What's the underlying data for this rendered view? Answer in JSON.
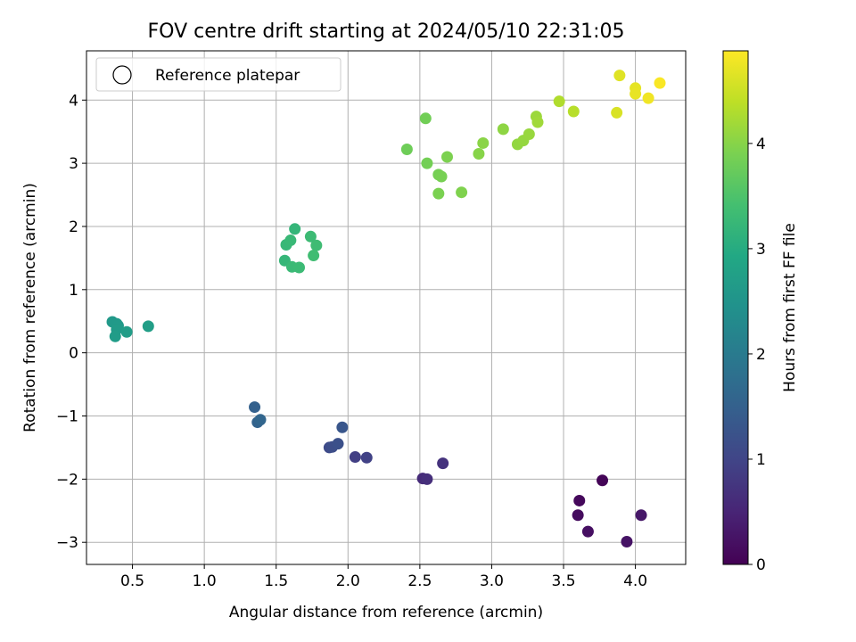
{
  "chart_data": {
    "type": "scatter",
    "title": "FOV centre drift starting at 2024/05/10 22:31:05",
    "xlabel": "Angular distance from reference (arcmin)",
    "ylabel": "Rotation from reference (arcmin)",
    "xlim": [
      0.18,
      4.35
    ],
    "ylim": [
      -3.35,
      4.78
    ],
    "xticks": [
      0.5,
      1.0,
      1.5,
      2.0,
      2.5,
      3.0,
      3.5,
      4.0
    ],
    "xtick_labels": [
      "0.5",
      "1.0",
      "1.5",
      "2.0",
      "2.5",
      "3.0",
      "3.5",
      "4.0"
    ],
    "yticks": [
      -3,
      -2,
      -1,
      0,
      1,
      2,
      3,
      4
    ],
    "ytick_labels": [
      "−3",
      "−2",
      "−1",
      "0",
      "1",
      "2",
      "3",
      "4"
    ],
    "grid": true,
    "legend": {
      "placement": "upper-left",
      "entries": [
        "Reference platepar"
      ]
    },
    "colorbar": {
      "label": "Hours from first FF file",
      "colormap": "viridis",
      "range": [
        0,
        4.88
      ],
      "ticks": [
        0,
        1,
        2,
        3,
        4
      ],
      "tick_labels": [
        "0",
        "1",
        "2",
        "3",
        "4"
      ]
    },
    "points": [
      {
        "x": 3.77,
        "y": -2.02,
        "c": 0.05
      },
      {
        "x": 3.61,
        "y": -2.34,
        "c": 0.1
      },
      {
        "x": 3.6,
        "y": -2.57,
        "c": 0.15
      },
      {
        "x": 3.67,
        "y": -2.83,
        "c": 0.2
      },
      {
        "x": 3.94,
        "y": -2.99,
        "c": 0.25
      },
      {
        "x": 4.04,
        "y": -2.57,
        "c": 0.3
      },
      {
        "x": 2.52,
        "y": -1.99,
        "c": 0.6
      },
      {
        "x": 2.55,
        "y": -2.0,
        "c": 0.65
      },
      {
        "x": 2.66,
        "y": -1.75,
        "c": 0.7
      },
      {
        "x": 2.05,
        "y": -1.65,
        "c": 0.9
      },
      {
        "x": 2.13,
        "y": -1.66,
        "c": 0.95
      },
      {
        "x": 1.87,
        "y": -1.5,
        "c": 1.1
      },
      {
        "x": 1.89,
        "y": -1.49,
        "c": 1.15
      },
      {
        "x": 1.93,
        "y": -1.44,
        "c": 1.2
      },
      {
        "x": 1.96,
        "y": -1.18,
        "c": 1.3
      },
      {
        "x": 1.35,
        "y": -0.86,
        "c": 1.5
      },
      {
        "x": 1.37,
        "y": -1.1,
        "c": 1.55
      },
      {
        "x": 1.39,
        "y": -1.06,
        "c": 1.6
      },
      {
        "x": 0.36,
        "y": 0.49,
        "c": 2.6
      },
      {
        "x": 0.39,
        "y": 0.46,
        "c": 2.62
      },
      {
        "x": 0.4,
        "y": 0.43,
        "c": 2.64
      },
      {
        "x": 0.39,
        "y": 0.37,
        "c": 2.66
      },
      {
        "x": 0.38,
        "y": 0.26,
        "c": 2.68
      },
      {
        "x": 0.46,
        "y": 0.33,
        "c": 2.7
      },
      {
        "x": 0.61,
        "y": 0.42,
        "c": 2.72
      },
      {
        "x": 1.63,
        "y": 1.96,
        "c": 3.2
      },
      {
        "x": 1.56,
        "y": 1.46,
        "c": 3.22
      },
      {
        "x": 1.57,
        "y": 1.71,
        "c": 3.24
      },
      {
        "x": 1.6,
        "y": 1.78,
        "c": 3.26
      },
      {
        "x": 1.61,
        "y": 1.36,
        "c": 3.28
      },
      {
        "x": 1.66,
        "y": 1.35,
        "c": 3.3
      },
      {
        "x": 1.74,
        "y": 1.84,
        "c": 3.32
      },
      {
        "x": 1.78,
        "y": 1.7,
        "c": 3.34
      },
      {
        "x": 1.76,
        "y": 1.54,
        "c": 3.36
      },
      {
        "x": 2.41,
        "y": 3.22,
        "c": 3.8
      },
      {
        "x": 2.54,
        "y": 3.71,
        "c": 3.82
      },
      {
        "x": 2.55,
        "y": 3.0,
        "c": 3.84
      },
      {
        "x": 2.63,
        "y": 2.82,
        "c": 3.86
      },
      {
        "x": 2.65,
        "y": 2.79,
        "c": 3.88
      },
      {
        "x": 2.63,
        "y": 2.52,
        "c": 3.9
      },
      {
        "x": 2.69,
        "y": 3.1,
        "c": 3.92
      },
      {
        "x": 2.79,
        "y": 2.54,
        "c": 3.94
      },
      {
        "x": 2.91,
        "y": 3.15,
        "c": 4.0
      },
      {
        "x": 2.94,
        "y": 3.32,
        "c": 4.02
      },
      {
        "x": 3.08,
        "y": 3.54,
        "c": 4.05
      },
      {
        "x": 3.18,
        "y": 3.3,
        "c": 4.08
      },
      {
        "x": 3.22,
        "y": 3.36,
        "c": 4.1
      },
      {
        "x": 3.26,
        "y": 3.46,
        "c": 4.12
      },
      {
        "x": 3.31,
        "y": 3.74,
        "c": 4.15
      },
      {
        "x": 3.32,
        "y": 3.65,
        "c": 4.18
      },
      {
        "x": 3.47,
        "y": 3.98,
        "c": 4.3
      },
      {
        "x": 3.57,
        "y": 3.82,
        "c": 4.35
      },
      {
        "x": 3.87,
        "y": 3.8,
        "c": 4.6
      },
      {
        "x": 3.89,
        "y": 4.39,
        "c": 4.65
      },
      {
        "x": 4.0,
        "y": 4.19,
        "c": 4.7
      },
      {
        "x": 4.0,
        "y": 4.1,
        "c": 4.72
      },
      {
        "x": 4.09,
        "y": 4.03,
        "c": 4.78
      },
      {
        "x": 4.17,
        "y": 4.27,
        "c": 4.85
      }
    ]
  }
}
